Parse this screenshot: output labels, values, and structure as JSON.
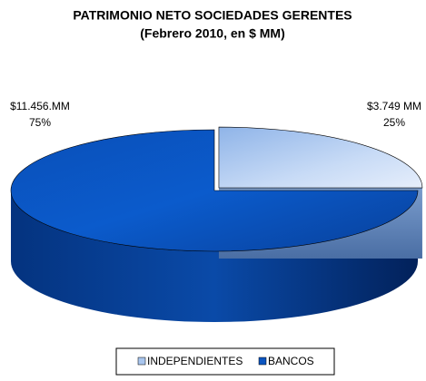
{
  "chart_data": {
    "type": "pie",
    "title": "PATRIMONIO NETO SOCIEDADES GERENTES",
    "subtitle": "(Febrero 2010, en $ MM)",
    "categories": [
      "INDEPENDIENTES",
      "BANCOS"
    ],
    "values": [
      25,
      75
    ],
    "value_labels": [
      "25%",
      "75%"
    ],
    "amount_labels": [
      "$3.749 MM",
      "$11.456.MM"
    ],
    "colors": [
      "#a9c6ee",
      "#0b55c0"
    ],
    "legend": "bottom"
  }
}
